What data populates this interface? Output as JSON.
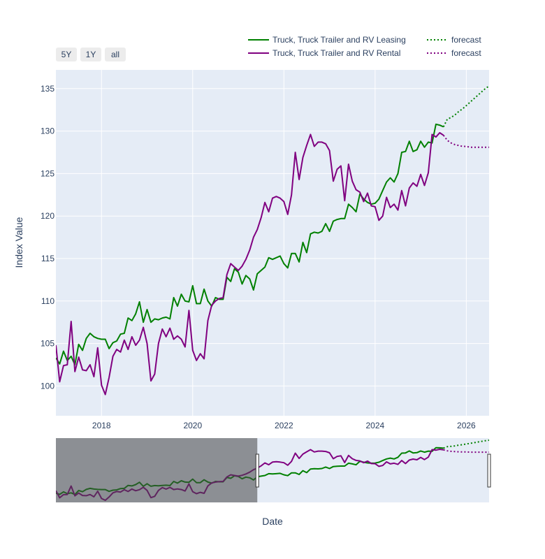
{
  "range_buttons": [
    "5Y",
    "1Y",
    "all"
  ],
  "chart_data": {
    "type": "line",
    "xlabel": "Date",
    "ylabel": "Index Value",
    "x_range": [
      "2017-01",
      "2026-07"
    ],
    "ylim": [
      96.5,
      137.2
    ],
    "x_ticks": [
      "2018",
      "2020",
      "2022",
      "2024",
      "2026"
    ],
    "y_ticks": [
      100,
      105,
      110,
      115,
      120,
      125,
      130,
      135
    ],
    "grid": true,
    "legend": "top-right",
    "rangeslider_window": [
      "2021-06",
      "2026-07"
    ],
    "series": [
      {
        "name": "Truck, Truck Trailer and RV Leasing",
        "color": "#008000",
        "dash": "solid",
        "x_start": "2017-01",
        "values": [
          103.3,
          102.6,
          104.1,
          103.0,
          103.5,
          102.5,
          104.9,
          104.2,
          105.6,
          106.2,
          105.8,
          105.6,
          105.5,
          105.5,
          104.4,
          105.1,
          105.3,
          106.1,
          106.2,
          108.0,
          107.7,
          108.5,
          109.9,
          107.5,
          109.0,
          107.5,
          107.9,
          107.8,
          108.0,
          108.1,
          107.9,
          110.4,
          109.4,
          110.8,
          110.0,
          109.9,
          111.8,
          109.7,
          109.7,
          111.4,
          110.0,
          109.4,
          110.4,
          110.2,
          110.2,
          112.8,
          112.3,
          113.8,
          113.4,
          112.0,
          113.0,
          112.6,
          111.3,
          113.2,
          113.6,
          114.0,
          115.1,
          114.9,
          115.1,
          115.3,
          114.4,
          113.9,
          115.6,
          115.6,
          114.6,
          116.9,
          115.7,
          117.9,
          118.1,
          118.0,
          118.2,
          119.1,
          118.2,
          119.4,
          119.6,
          119.7,
          119.7,
          121.4,
          121.0,
          120.5,
          122.6,
          122.0,
          121.6,
          121.4,
          121.5,
          122.0,
          123.0,
          124.0,
          124.5,
          124.0,
          125.0,
          127.5,
          127.6,
          128.8,
          127.6,
          127.8,
          128.8,
          128.1,
          128.7,
          128.6,
          130.8,
          130.7,
          130.5
        ],
        "forecast": {
          "name": "forecast",
          "dash": "dot",
          "x_start": "2025-07",
          "values": [
            130.5,
            131.4,
            131.6,
            131.9,
            132.3,
            132.6,
            133.0,
            133.4,
            133.8,
            134.2,
            134.6,
            135.0,
            135.3
          ]
        }
      },
      {
        "name": "Truck, Truck Trailer and RV Rental",
        "color": "#800080",
        "dash": "solid",
        "x_start": "2017-01",
        "values": [
          104.8,
          100.5,
          102.4,
          102.5,
          107.6,
          101.7,
          103.4,
          101.9,
          101.8,
          102.5,
          101.1,
          104.5,
          100.1,
          99.0,
          101.0,
          103.5,
          104.3,
          104.0,
          105.4,
          104.3,
          105.8,
          104.8,
          105.4,
          106.9,
          105.0,
          100.6,
          101.4,
          105.0,
          106.7,
          105.8,
          106.8,
          105.5,
          105.9,
          105.5,
          104.6,
          108.9,
          104.2,
          103.0,
          103.8,
          103.2,
          107.7,
          109.5,
          110.0,
          110.3,
          110.4,
          113.1,
          114.4,
          114.0,
          113.6,
          114.1,
          114.9,
          116.0,
          117.5,
          118.4,
          119.8,
          121.6,
          120.5,
          122.1,
          122.3,
          122.1,
          121.7,
          120.2,
          122.5,
          127.5,
          124.3,
          126.9,
          128.3,
          129.6,
          128.2,
          128.7,
          128.7,
          128.5,
          127.7,
          124.1,
          125.5,
          125.9,
          121.8,
          126.1,
          124.1,
          123.1,
          122.8,
          121.7,
          122.7,
          121.2,
          121.1,
          119.5,
          120.0,
          122.2,
          121.0,
          121.4,
          120.7,
          123.0,
          121.2,
          123.3,
          123.9,
          123.5,
          124.9,
          123.6,
          125.1,
          129.6,
          129.3,
          129.8,
          129.5
        ],
        "forecast": {
          "name": "forecast",
          "dash": "dot",
          "x_start": "2025-07",
          "values": [
            129.5,
            128.9,
            128.6,
            128.4,
            128.3,
            128.2,
            128.2,
            128.1,
            128.1,
            128.1,
            128.1,
            128.1,
            128.1
          ]
        }
      }
    ]
  }
}
